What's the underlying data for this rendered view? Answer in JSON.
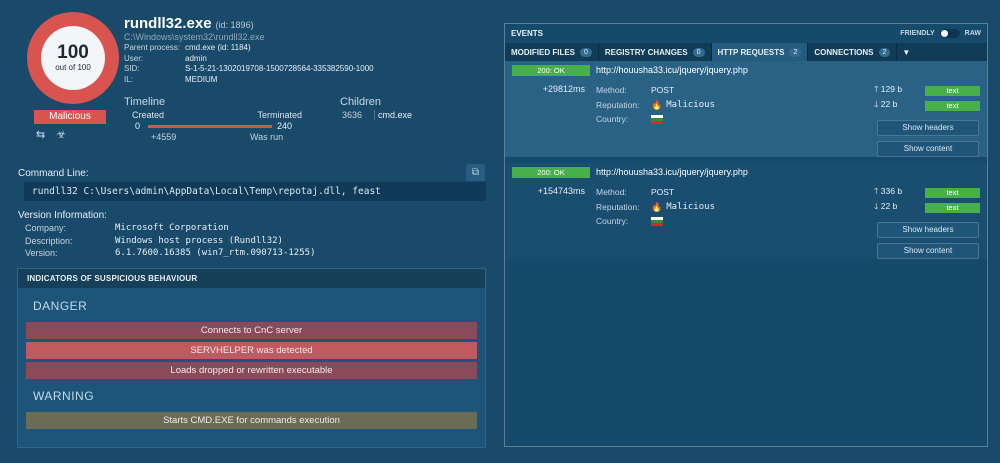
{
  "score": {
    "value": "100",
    "out_of": "out of 100",
    "verdict": "Malicious",
    "icons": "⇆ ☣"
  },
  "process": {
    "name": "rundll32.exe",
    "id": "(id: 1896)",
    "path": "C:\\Windows\\system32\\rundll32.exe",
    "details": [
      {
        "label": "Parent process:",
        "value": "cmd.exe (id: 1184)"
      },
      {
        "label": "User:",
        "value": "admin"
      },
      {
        "label": "SID:",
        "value": "S-1-5-21-1302019708-1500728564-335382590-1000"
      },
      {
        "label": "IL:",
        "value": "MEDIUM"
      }
    ]
  },
  "timeline": {
    "title": "Timeline",
    "created": "Created",
    "terminated": "Terminated",
    "start": "0",
    "end": "240",
    "offset": "+4559",
    "status": "Was run"
  },
  "children": {
    "title": "Children",
    "pid": "3636",
    "name": "cmd.exe"
  },
  "command_line": {
    "label": "Command Line:",
    "value": "rundll32 C:\\Users\\admin\\AppData\\Local\\Temp\\repotaj.dll, feast",
    "copy_icon": "copy-icon"
  },
  "version": {
    "label": "Version Information:",
    "rows": [
      {
        "k": "Company:",
        "v": "Microsoft Corporation"
      },
      {
        "k": "Description:",
        "v": "Windows host process (Rundll32)"
      },
      {
        "k": "Version:",
        "v": "6.1.7600.16385 (win7_rtm.090713-1255)"
      }
    ]
  },
  "indicators": {
    "title": "INDICATORS OF SUSPICIOUS BEHAVIOUR",
    "danger_label": "DANGER",
    "danger": [
      "Connects to CnC server",
      "SERVHELPER was detected",
      "Loads dropped or rewritten executable"
    ],
    "warning_label": "WARNING",
    "warning": [
      "Starts CMD.EXE for commands execution"
    ]
  },
  "events": {
    "title": "EVENTS",
    "toggle_left": "FRIENDLY",
    "toggle_right": "RAW",
    "tabs": [
      {
        "label": "MODIFIED FILES",
        "count": "0"
      },
      {
        "label": "REGISTRY CHANGES",
        "count": "0"
      },
      {
        "label": "HTTP REQUESTS",
        "count": "2"
      },
      {
        "label": "CONNECTIONS",
        "count": "2"
      }
    ],
    "dropdown": "▼",
    "field_labels": {
      "method": "Method:",
      "reputation": "Reputation:",
      "country": "Country:"
    },
    "buttons": {
      "text": "text",
      "headers": "Show headers",
      "content": "Show content"
    },
    "requests": [
      {
        "status": "200: OK",
        "delta": "+29812ms",
        "url": "http://houusha33.icu/jquery/jquery.php",
        "method": "POST",
        "reputation": "Malicious",
        "sent": "129 b",
        "received": "22 b"
      },
      {
        "status": "200: OK",
        "delta": "+154743ms",
        "url": "http://houusha33.icu/jquery/jquery.php",
        "method": "POST",
        "reputation": "Malicious",
        "sent": "336 b",
        "received": "22 b"
      }
    ]
  },
  "colors": {
    "danger": "#d9534f",
    "ok": "#47b04a",
    "background": "#1a4a6a"
  }
}
